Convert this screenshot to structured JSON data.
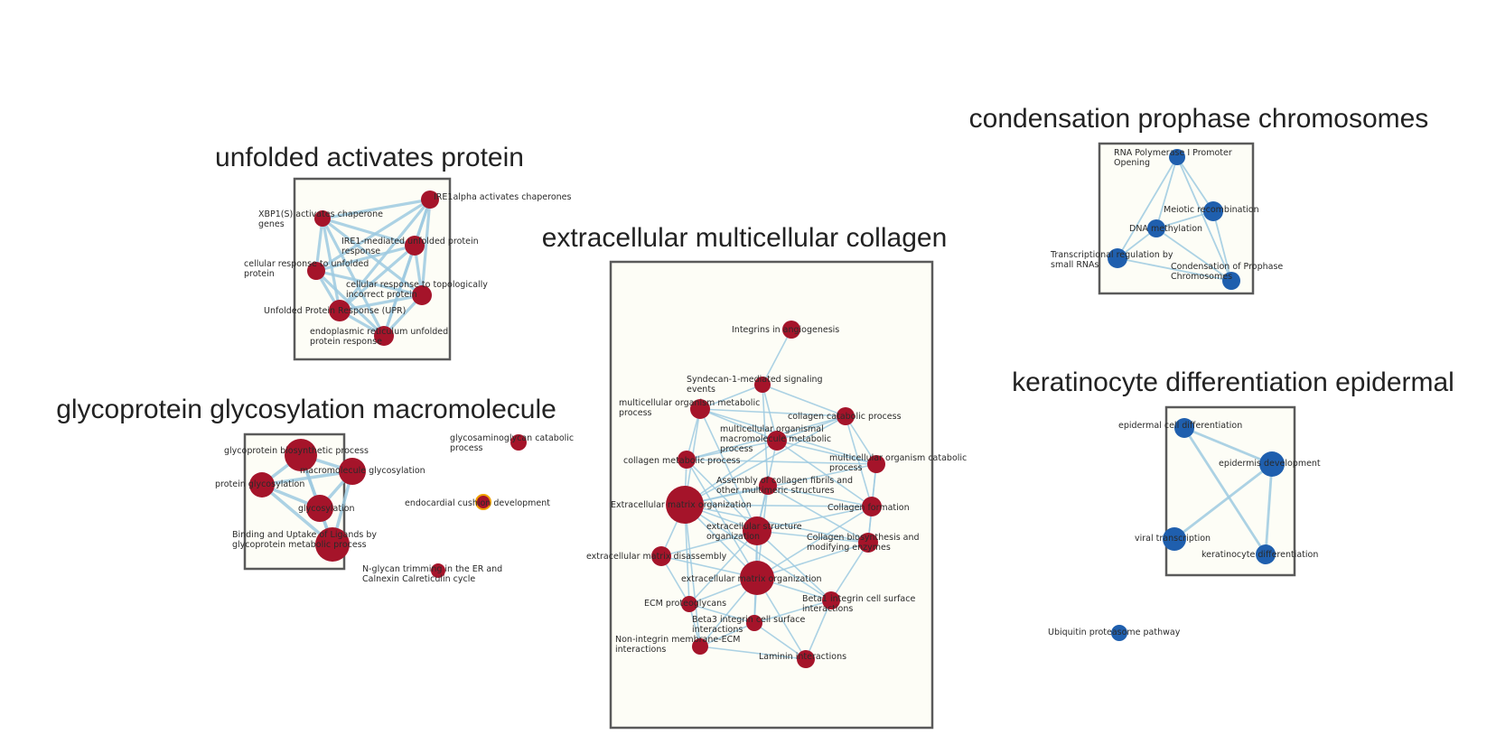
{
  "colors": {
    "red": "#a5142a",
    "blue": "#1f5fae",
    "orange_ring": "#f0a100",
    "edge": "#9ecae1",
    "box_fill": "#fdfdf6",
    "box_stroke": "#5a5a5a"
  },
  "clusters": [
    {
      "id": "unfolded",
      "title": "unfolded activates protein"
    },
    {
      "id": "glyco",
      "title": "glycoprotein glycosylation macromolecule"
    },
    {
      "id": "ecm",
      "title": "extracellular multicellular collagen"
    },
    {
      "id": "condensation",
      "title": "condensation prophase chromosomes"
    },
    {
      "id": "keratin",
      "title": "keratinocyte differentiation epidermal"
    }
  ],
  "nodes": [
    {
      "id": "u1",
      "color": "red",
      "label": [
        "IRE1alpha activates chaperones"
      ]
    },
    {
      "id": "u2",
      "color": "red",
      "label": [
        "XBP1(S) activates chaperone",
        "genes"
      ]
    },
    {
      "id": "u3",
      "color": "red",
      "label": [
        "IRE1-mediated unfolded protein",
        "response"
      ]
    },
    {
      "id": "u4",
      "color": "red",
      "label": [
        "cellular response to unfolded",
        "protein"
      ]
    },
    {
      "id": "u5",
      "color": "red",
      "label": [
        "cellular response to topologically",
        "incorrect protein"
      ]
    },
    {
      "id": "u6",
      "color": "red",
      "label": [
        "Unfolded Protein Response (UPR)"
      ]
    },
    {
      "id": "u7",
      "color": "red",
      "label": [
        "endoplasmic reticulum unfolded",
        "protein response"
      ]
    },
    {
      "id": "g1",
      "color": "red",
      "label": [
        "glycoprotein biosynthetic process"
      ]
    },
    {
      "id": "g2",
      "color": "red",
      "label": [
        "macromolecule glycosylation"
      ]
    },
    {
      "id": "g3",
      "color": "red",
      "label": [
        "protein glycosylation"
      ]
    },
    {
      "id": "g4",
      "color": "red",
      "label": [
        "glycosylation"
      ]
    },
    {
      "id": "g5",
      "color": "red",
      "label": [
        "Binding and Uptake of Ligands by",
        "glycoprotein metabolic process"
      ]
    },
    {
      "id": "s1",
      "color": "red",
      "label": [
        "glycosaminoglycan catabolic",
        "process"
      ]
    },
    {
      "id": "s2",
      "color": "red",
      "ring": true,
      "label": [
        "endocardial cushion development"
      ]
    },
    {
      "id": "s3",
      "color": "red",
      "label": [
        "N-glycan trimming in the ER and",
        "Calnexin Calreticulin cycle"
      ]
    },
    {
      "id": "e1",
      "color": "red",
      "label": [
        "Integrins in angiogenesis"
      ]
    },
    {
      "id": "e2",
      "color": "red",
      "label": [
        "Syndecan-1-mediated signaling",
        "events"
      ]
    },
    {
      "id": "e3",
      "color": "red",
      "label": [
        "multicellular organism metabolic",
        "process"
      ]
    },
    {
      "id": "e4",
      "color": "red",
      "label": [
        "collagen catabolic process"
      ]
    },
    {
      "id": "e5",
      "color": "red",
      "label": [
        "multicellular organismal",
        "macromolecule metabolic",
        "process"
      ]
    },
    {
      "id": "e6",
      "color": "red",
      "label": [
        "collagen metabolic process"
      ]
    },
    {
      "id": "e7",
      "color": "red",
      "label": [
        "multicellular organism catabolic",
        "process"
      ]
    },
    {
      "id": "e8",
      "color": "red",
      "label": [
        "Assembly of collagen fibrils and",
        "other multimeric structures"
      ]
    },
    {
      "id": "e9",
      "color": "red",
      "label": [
        "Extracellular matrix organization"
      ]
    },
    {
      "id": "e10",
      "color": "red",
      "label": [
        "Collagen formation"
      ]
    },
    {
      "id": "e11",
      "color": "red",
      "label": [
        "extracellular structure",
        "organization"
      ]
    },
    {
      "id": "e12",
      "color": "red",
      "label": [
        "Collagen biosynthesis and",
        "modifying enzymes"
      ]
    },
    {
      "id": "e13",
      "color": "red",
      "label": [
        "extracellular matrix disassembly"
      ]
    },
    {
      "id": "e14",
      "color": "red",
      "label": [
        "extracellular matrix organization"
      ]
    },
    {
      "id": "e15",
      "color": "red",
      "label": [
        "ECM proteoglycans"
      ]
    },
    {
      "id": "e16",
      "color": "red",
      "label": [
        "Beta1 integrin cell surface",
        "interactions"
      ]
    },
    {
      "id": "e17",
      "color": "red",
      "label": [
        "Beta3 integrin cell surface",
        "interactions"
      ]
    },
    {
      "id": "e18",
      "color": "red",
      "label": [
        "Non-integrin membrane-ECM",
        "interactions"
      ]
    },
    {
      "id": "e19",
      "color": "red",
      "label": [
        "Laminin interactions"
      ]
    },
    {
      "id": "c1",
      "color": "blue",
      "label": [
        "RNA Polymerase I Promoter",
        "Opening"
      ]
    },
    {
      "id": "c2",
      "color": "blue",
      "label": [
        "Meiotic recombination"
      ]
    },
    {
      "id": "c3",
      "color": "blue",
      "label": [
        "DNA methylation"
      ]
    },
    {
      "id": "c4",
      "color": "blue",
      "label": [
        "Transcriptional regulation by",
        "small RNAs"
      ]
    },
    {
      "id": "c5",
      "color": "blue",
      "label": [
        "Condensation of Prophase",
        "Chromosomes"
      ]
    },
    {
      "id": "k1",
      "color": "blue",
      "label": [
        "epidermal cell differentiation"
      ]
    },
    {
      "id": "k2",
      "color": "blue",
      "label": [
        "epidermis development"
      ]
    },
    {
      "id": "k3",
      "color": "blue",
      "label": [
        "viral transcription"
      ]
    },
    {
      "id": "k4",
      "color": "blue",
      "label": [
        "keratinocyte differentiation"
      ]
    },
    {
      "id": "b1",
      "color": "blue",
      "label": [
        "Ubiquitin proteasome pathway"
      ]
    }
  ],
  "edges": [
    [
      "u1",
      "u2"
    ],
    [
      "u1",
      "u3"
    ],
    [
      "u1",
      "u4"
    ],
    [
      "u1",
      "u5"
    ],
    [
      "u1",
      "u6"
    ],
    [
      "u1",
      "u7"
    ],
    [
      "u2",
      "u3"
    ],
    [
      "u2",
      "u4"
    ],
    [
      "u2",
      "u5"
    ],
    [
      "u2",
      "u6"
    ],
    [
      "u2",
      "u7"
    ],
    [
      "u3",
      "u4"
    ],
    [
      "u3",
      "u5"
    ],
    [
      "u3",
      "u6"
    ],
    [
      "u3",
      "u7"
    ],
    [
      "u4",
      "u5"
    ],
    [
      "u4",
      "u6"
    ],
    [
      "u4",
      "u7"
    ],
    [
      "u5",
      "u6"
    ],
    [
      "u5",
      "u7"
    ],
    [
      "u6",
      "u7"
    ],
    [
      "g1",
      "g2"
    ],
    [
      "g1",
      "g3"
    ],
    [
      "g1",
      "g4"
    ],
    [
      "g1",
      "g5"
    ],
    [
      "g2",
      "g3"
    ],
    [
      "g2",
      "g4"
    ],
    [
      "g2",
      "g5"
    ],
    [
      "g3",
      "g4"
    ],
    [
      "g3",
      "g5"
    ],
    [
      "g4",
      "g5"
    ],
    [
      "e1",
      "e2"
    ],
    [
      "e2",
      "e3"
    ],
    [
      "e2",
      "e4"
    ],
    [
      "e2",
      "e5"
    ],
    [
      "e2",
      "e8"
    ],
    [
      "e3",
      "e4"
    ],
    [
      "e3",
      "e5"
    ],
    [
      "e3",
      "e6"
    ],
    [
      "e3",
      "e7"
    ],
    [
      "e3",
      "e9"
    ],
    [
      "e3",
      "e11"
    ],
    [
      "e4",
      "e5"
    ],
    [
      "e4",
      "e6"
    ],
    [
      "e4",
      "e7"
    ],
    [
      "e4",
      "e10"
    ],
    [
      "e4",
      "e9"
    ],
    [
      "e5",
      "e6"
    ],
    [
      "e5",
      "e7"
    ],
    [
      "e5",
      "e9"
    ],
    [
      "e5",
      "e10"
    ],
    [
      "e5",
      "e11"
    ],
    [
      "e6",
      "e7"
    ],
    [
      "e6",
      "e9"
    ],
    [
      "e6",
      "e11"
    ],
    [
      "e6",
      "e14"
    ],
    [
      "e7",
      "e9"
    ],
    [
      "e7",
      "e10"
    ],
    [
      "e7",
      "e12"
    ],
    [
      "e8",
      "e9"
    ],
    [
      "e8",
      "e10"
    ],
    [
      "e8",
      "e11"
    ],
    [
      "e8",
      "e12"
    ],
    [
      "e8",
      "e14"
    ],
    [
      "e9",
      "e10"
    ],
    [
      "e9",
      "e11"
    ],
    [
      "e9",
      "e12"
    ],
    [
      "e9",
      "e13"
    ],
    [
      "e9",
      "e14"
    ],
    [
      "e9",
      "e15"
    ],
    [
      "e9",
      "e16"
    ],
    [
      "e9",
      "e18"
    ],
    [
      "e10",
      "e11"
    ],
    [
      "e10",
      "e12"
    ],
    [
      "e10",
      "e14"
    ],
    [
      "e11",
      "e12"
    ],
    [
      "e11",
      "e13"
    ],
    [
      "e11",
      "e14"
    ],
    [
      "e11",
      "e15"
    ],
    [
      "e11",
      "e16"
    ],
    [
      "e11",
      "e17"
    ],
    [
      "e12",
      "e14"
    ],
    [
      "e12",
      "e16"
    ],
    [
      "e13",
      "e14"
    ],
    [
      "e13",
      "e15"
    ],
    [
      "e14",
      "e15"
    ],
    [
      "e14",
      "e16"
    ],
    [
      "e14",
      "e17"
    ],
    [
      "e14",
      "e18"
    ],
    [
      "e14",
      "e19"
    ],
    [
      "e15",
      "e17"
    ],
    [
      "e15",
      "e18"
    ],
    [
      "e16",
      "e17"
    ],
    [
      "e16",
      "e19"
    ],
    [
      "e17",
      "e18"
    ],
    [
      "e17",
      "e19"
    ],
    [
      "e18",
      "e19"
    ],
    [
      "c1",
      "c3"
    ],
    [
      "c1",
      "c2"
    ],
    [
      "c1",
      "c4"
    ],
    [
      "c1",
      "c5"
    ],
    [
      "c2",
      "c3"
    ],
    [
      "c2",
      "c5"
    ],
    [
      "c3",
      "c4"
    ],
    [
      "c3",
      "c5"
    ],
    [
      "c4",
      "c5"
    ],
    [
      "k1",
      "k2"
    ],
    [
      "k1",
      "k4"
    ],
    [
      "k2",
      "k3"
    ],
    [
      "k2",
      "k4"
    ]
  ]
}
